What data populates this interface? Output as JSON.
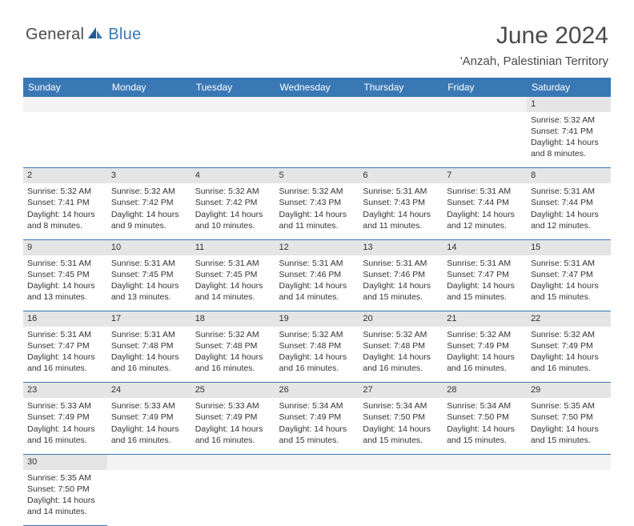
{
  "logo": {
    "text1": "General",
    "text2": "Blue"
  },
  "title": "June 2024",
  "location": "'Anzah, Palestinian Territory",
  "colors": {
    "header_bg": "#3a78b5",
    "header_text": "#ffffff",
    "daynum_bg": "#e5e5e5",
    "border": "#3a78b5",
    "text": "#333333",
    "logo_gray": "#4a4a4a",
    "logo_blue": "#3a78b5"
  },
  "day_headers": [
    "Sunday",
    "Monday",
    "Tuesday",
    "Wednesday",
    "Thursday",
    "Friday",
    "Saturday"
  ],
  "weeks": [
    [
      null,
      null,
      null,
      null,
      null,
      null,
      {
        "n": "1",
        "sr": "5:32 AM",
        "ss": "7:41 PM",
        "dl": "14 hours and 8 minutes."
      }
    ],
    [
      {
        "n": "2",
        "sr": "5:32 AM",
        "ss": "7:41 PM",
        "dl": "14 hours and 8 minutes."
      },
      {
        "n": "3",
        "sr": "5:32 AM",
        "ss": "7:42 PM",
        "dl": "14 hours and 9 minutes."
      },
      {
        "n": "4",
        "sr": "5:32 AM",
        "ss": "7:42 PM",
        "dl": "14 hours and 10 minutes."
      },
      {
        "n": "5",
        "sr": "5:32 AM",
        "ss": "7:43 PM",
        "dl": "14 hours and 11 minutes."
      },
      {
        "n": "6",
        "sr": "5:31 AM",
        "ss": "7:43 PM",
        "dl": "14 hours and 11 minutes."
      },
      {
        "n": "7",
        "sr": "5:31 AM",
        "ss": "7:44 PM",
        "dl": "14 hours and 12 minutes."
      },
      {
        "n": "8",
        "sr": "5:31 AM",
        "ss": "7:44 PM",
        "dl": "14 hours and 12 minutes."
      }
    ],
    [
      {
        "n": "9",
        "sr": "5:31 AM",
        "ss": "7:45 PM",
        "dl": "14 hours and 13 minutes."
      },
      {
        "n": "10",
        "sr": "5:31 AM",
        "ss": "7:45 PM",
        "dl": "14 hours and 13 minutes."
      },
      {
        "n": "11",
        "sr": "5:31 AM",
        "ss": "7:45 PM",
        "dl": "14 hours and 14 minutes."
      },
      {
        "n": "12",
        "sr": "5:31 AM",
        "ss": "7:46 PM",
        "dl": "14 hours and 14 minutes."
      },
      {
        "n": "13",
        "sr": "5:31 AM",
        "ss": "7:46 PM",
        "dl": "14 hours and 15 minutes."
      },
      {
        "n": "14",
        "sr": "5:31 AM",
        "ss": "7:47 PM",
        "dl": "14 hours and 15 minutes."
      },
      {
        "n": "15",
        "sr": "5:31 AM",
        "ss": "7:47 PM",
        "dl": "14 hours and 15 minutes."
      }
    ],
    [
      {
        "n": "16",
        "sr": "5:31 AM",
        "ss": "7:47 PM",
        "dl": "14 hours and 16 minutes."
      },
      {
        "n": "17",
        "sr": "5:31 AM",
        "ss": "7:48 PM",
        "dl": "14 hours and 16 minutes."
      },
      {
        "n": "18",
        "sr": "5:32 AM",
        "ss": "7:48 PM",
        "dl": "14 hours and 16 minutes."
      },
      {
        "n": "19",
        "sr": "5:32 AM",
        "ss": "7:48 PM",
        "dl": "14 hours and 16 minutes."
      },
      {
        "n": "20",
        "sr": "5:32 AM",
        "ss": "7:48 PM",
        "dl": "14 hours and 16 minutes."
      },
      {
        "n": "21",
        "sr": "5:32 AM",
        "ss": "7:49 PM",
        "dl": "14 hours and 16 minutes."
      },
      {
        "n": "22",
        "sr": "5:32 AM",
        "ss": "7:49 PM",
        "dl": "14 hours and 16 minutes."
      }
    ],
    [
      {
        "n": "23",
        "sr": "5:33 AM",
        "ss": "7:49 PM",
        "dl": "14 hours and 16 minutes."
      },
      {
        "n": "24",
        "sr": "5:33 AM",
        "ss": "7:49 PM",
        "dl": "14 hours and 16 minutes."
      },
      {
        "n": "25",
        "sr": "5:33 AM",
        "ss": "7:49 PM",
        "dl": "14 hours and 16 minutes."
      },
      {
        "n": "26",
        "sr": "5:34 AM",
        "ss": "7:49 PM",
        "dl": "14 hours and 15 minutes."
      },
      {
        "n": "27",
        "sr": "5:34 AM",
        "ss": "7:50 PM",
        "dl": "14 hours and 15 minutes."
      },
      {
        "n": "28",
        "sr": "5:34 AM",
        "ss": "7:50 PM",
        "dl": "14 hours and 15 minutes."
      },
      {
        "n": "29",
        "sr": "5:35 AM",
        "ss": "7:50 PM",
        "dl": "14 hours and 15 minutes."
      }
    ],
    [
      {
        "n": "30",
        "sr": "5:35 AM",
        "ss": "7:50 PM",
        "dl": "14 hours and 14 minutes."
      },
      null,
      null,
      null,
      null,
      null,
      null
    ]
  ],
  "labels": {
    "sunrise": "Sunrise:",
    "sunset": "Sunset:",
    "daylight": "Daylight:"
  }
}
